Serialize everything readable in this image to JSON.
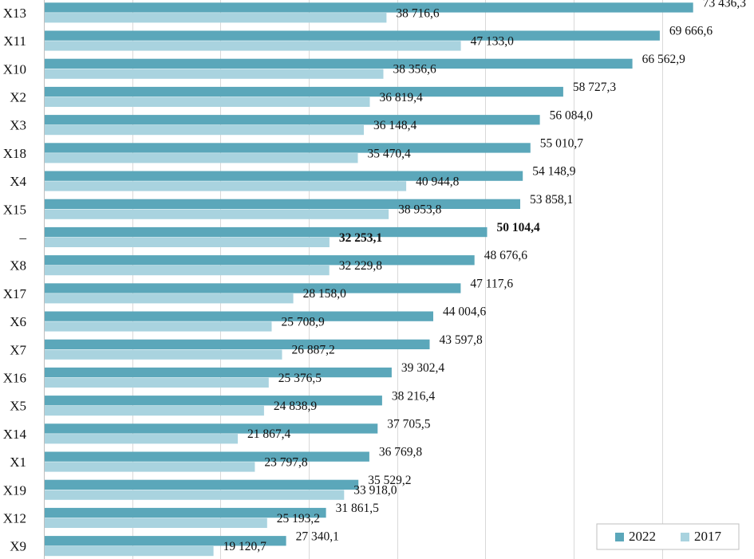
{
  "chart_data": {
    "type": "bar",
    "orientation": "horizontal",
    "title": "",
    "xlabel": "",
    "ylabel": "",
    "xlim": [
      0,
      80000
    ],
    "grid": true,
    "legend_position": "bottom-right",
    "highlight_category": "–",
    "categories": [
      "X13",
      "X11",
      "X10",
      "X2",
      "X3",
      "X18",
      "X4",
      "X15",
      "–",
      "X8",
      "X17",
      "X6",
      "X7",
      "X16",
      "X5",
      "X14",
      "X1",
      "X19",
      "X12",
      "X9"
    ],
    "series": [
      {
        "name": "2022",
        "color": "#5ba7ba",
        "values": [
          73436.3,
          69666.6,
          66562.9,
          58727.3,
          56084.0,
          55010.7,
          54148.9,
          53858.1,
          50104.4,
          48676.6,
          47117.6,
          44004.6,
          43597.8,
          39302.4,
          38216.4,
          37705.5,
          36769.8,
          35529.2,
          31861.5,
          27340.1
        ],
        "labels": [
          "73 436,3",
          "69 666,6",
          "66 562,9",
          "58 727,3",
          "56 084,0",
          "55 010,7",
          "54 148,9",
          "53 858,1",
          "50 104,4",
          "48 676,6",
          "47 117,6",
          "44 004,6",
          "43 597,8",
          "39 302,4",
          "38 216,4",
          "37 705,5",
          "36 769,8",
          "35 529,2",
          "31 861,5",
          "27 340,1"
        ]
      },
      {
        "name": "2017",
        "color": "#a9d3df",
        "values": [
          38716.6,
          47133.0,
          38356.6,
          36819.4,
          36148.4,
          35470.4,
          40944.8,
          38953.8,
          32253.1,
          32229.8,
          28158.0,
          25708.9,
          26887.2,
          25376.5,
          24838.9,
          21867.4,
          23797.8,
          33918.0,
          25193.2,
          19120.7
        ],
        "labels": [
          "38 716,6",
          "47 133,0",
          "38 356,6",
          "36 819,4",
          "36 148,4",
          "35 470,4",
          "40 944,8",
          "38 953,8",
          "32 253,1",
          "32 229,8",
          "28 158,0",
          "25 708,9",
          "26 887,2",
          "25 376,5",
          "24 838,9",
          "21 867,4",
          "23 797,8",
          "33 918,0",
          "25 193,2",
          "19 120,7"
        ]
      }
    ]
  }
}
